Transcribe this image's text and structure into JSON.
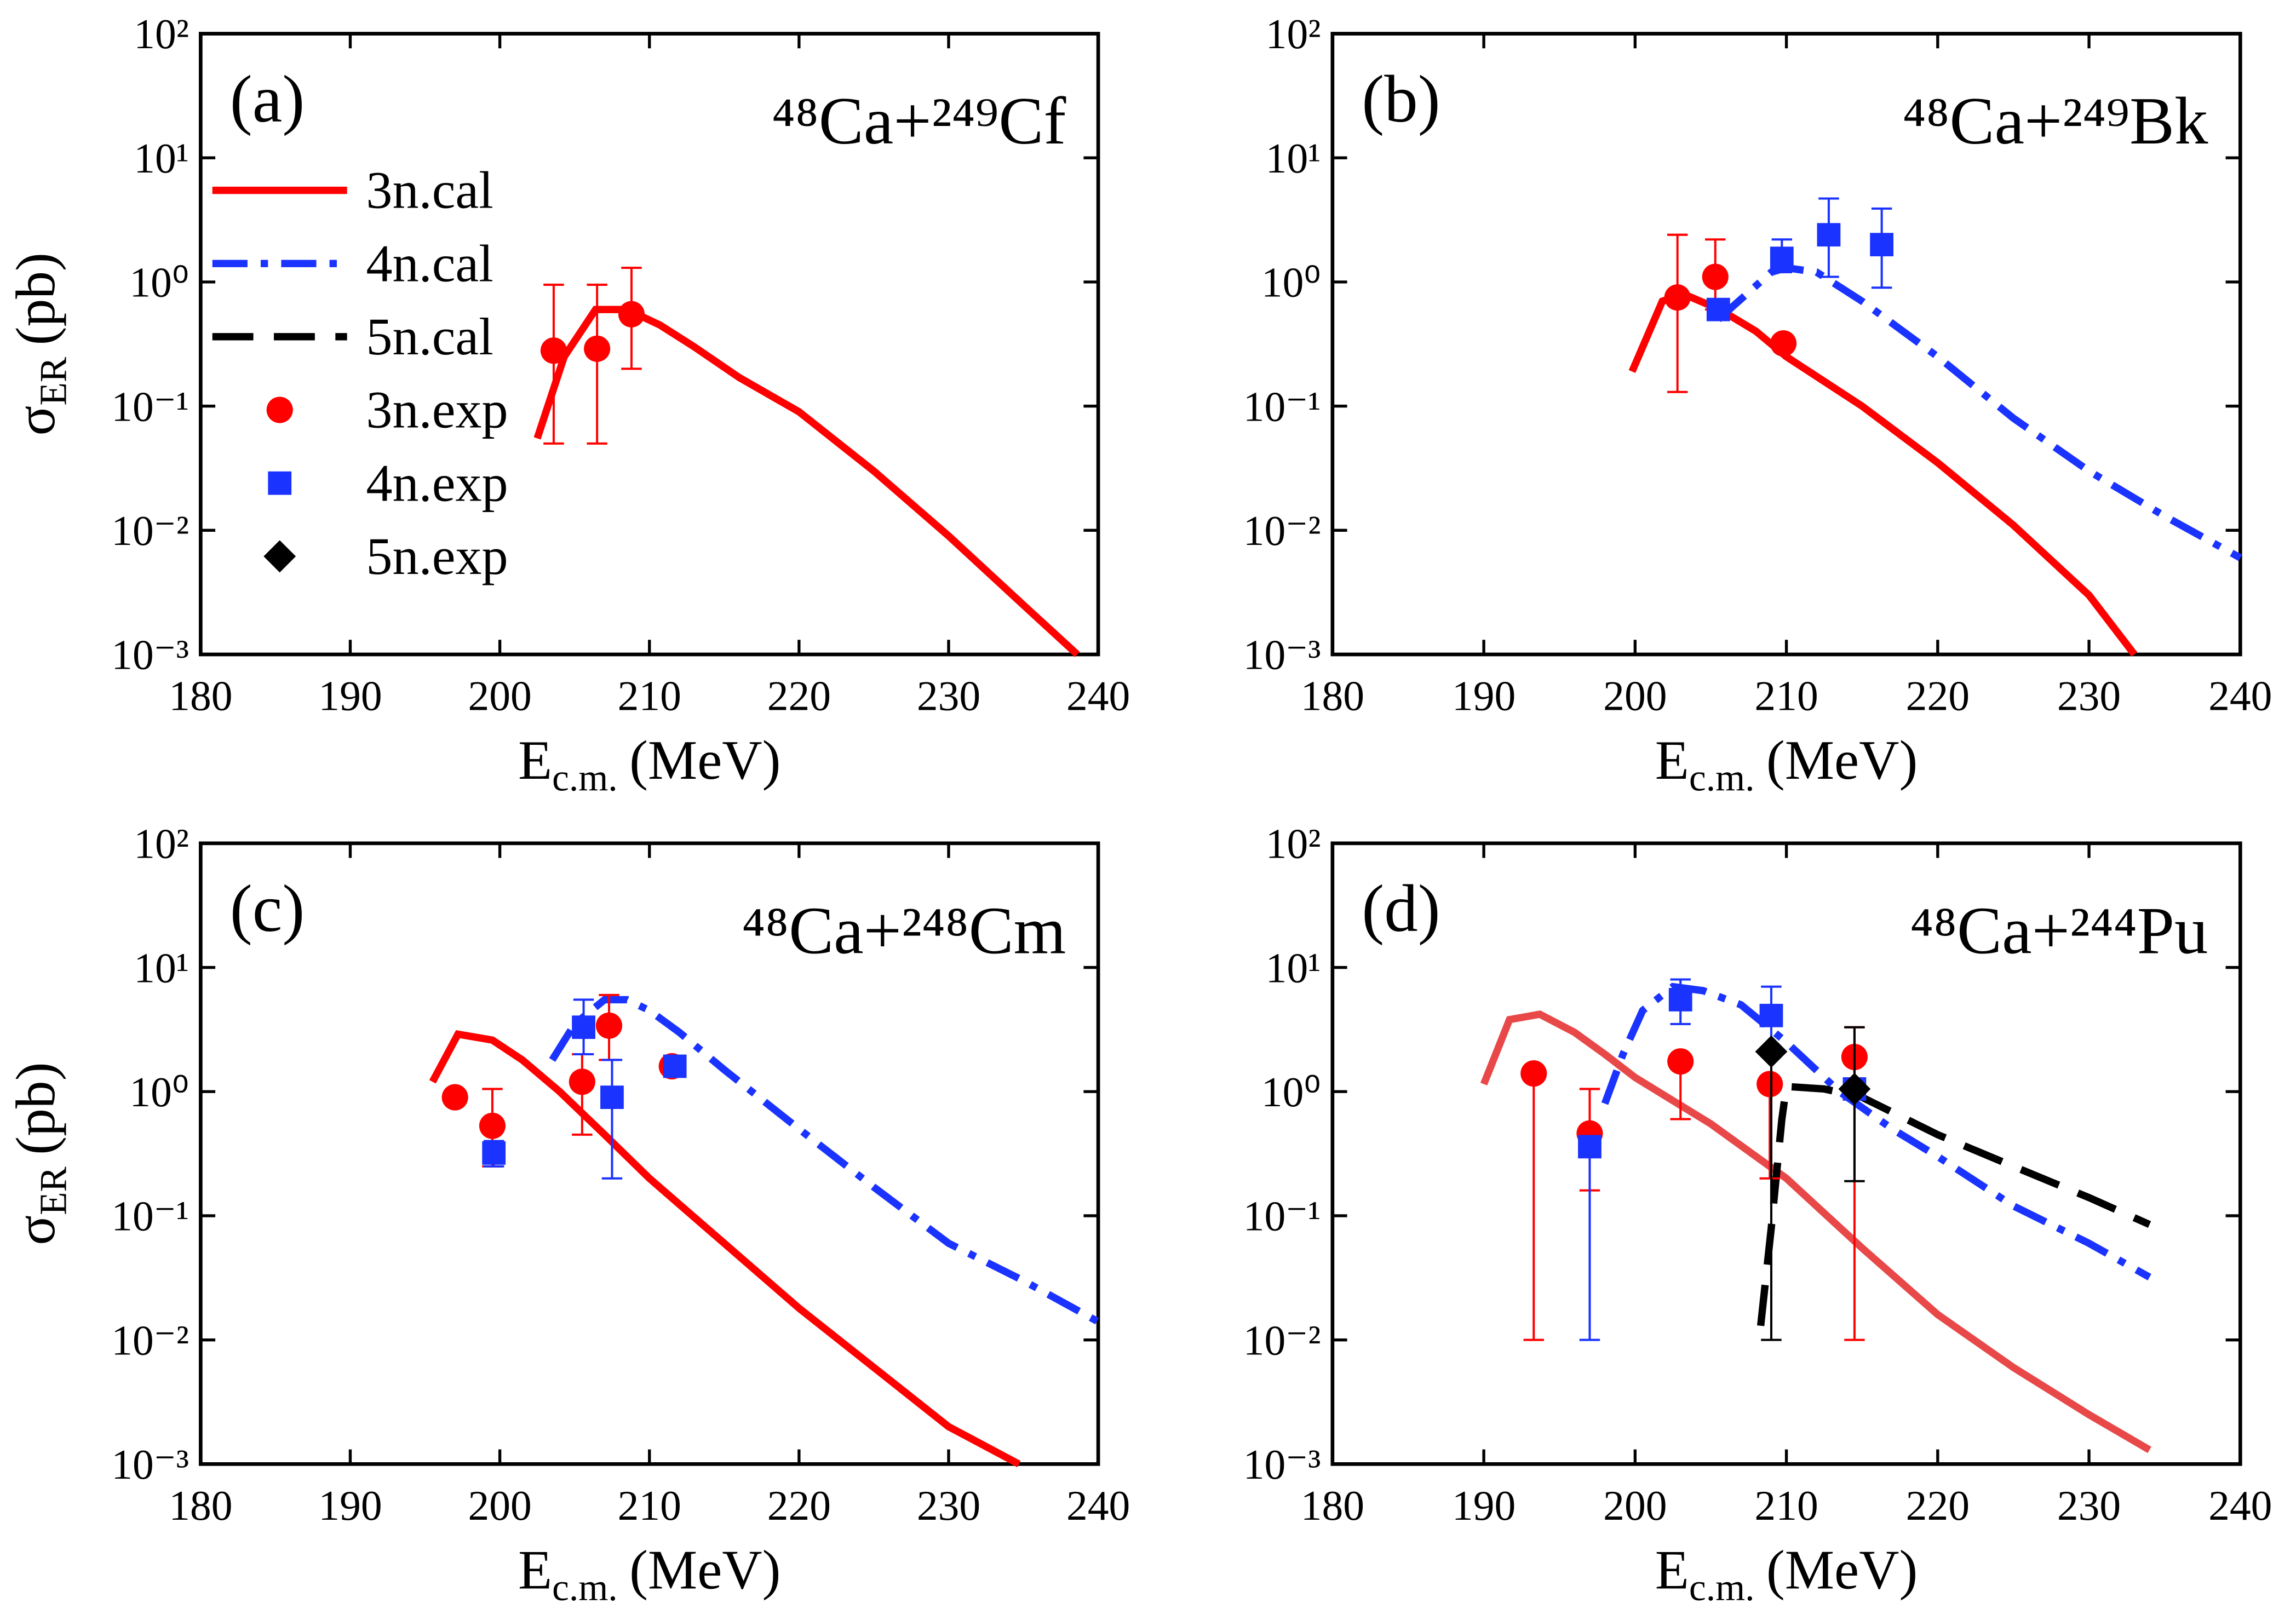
{
  "chart_data": [
    {
      "type": "line",
      "label": "(a)",
      "title": "⁴⁸Ca+²⁴⁹Cf",
      "x_label": {
        "main": "E",
        "sub": "c.m.",
        "unit": "(MeV)"
      },
      "y_label": {
        "main": "σ",
        "sub": "ER",
        "unit": "(pb)"
      },
      "xlim": [
        180,
        240
      ],
      "xticks": [
        180,
        190,
        200,
        210,
        220,
        230,
        240
      ],
      "ylim": [
        0.001,
        100
      ],
      "ylog": true,
      "yticks": [
        {
          "value": 0.001,
          "label": "10⁻³"
        },
        {
          "value": 0.01,
          "label": "10⁻²"
        },
        {
          "value": 0.1,
          "label": "10⁻¹"
        },
        {
          "value": 1,
          "label": "10⁰"
        },
        {
          "value": 10,
          "label": "10¹"
        },
        {
          "value": 100,
          "label": "10²"
        }
      ],
      "legend": "upper left",
      "series": [
        {
          "name": "3n.cal",
          "color": "#ff0000",
          "style": "line",
          "dash": "solid",
          "x": [
            202.5,
            204.3,
            206.4,
            208.5,
            210.7,
            213,
            216,
            220,
            225,
            230,
            235,
            238.6
          ],
          "values": [
            0.055,
            0.25,
            0.6,
            0.6,
            0.45,
            0.3,
            0.17,
            0.09,
            0.03,
            0.009,
            0.0025,
            0.001
          ]
        },
        {
          "name": "4n.cal",
          "color": "#1a33ff",
          "style": "line",
          "dash": "dashdot",
          "x": [],
          "values": []
        },
        {
          "name": "5n.cal",
          "color": "#000000",
          "style": "line",
          "dash": "dash",
          "x": [],
          "values": []
        },
        {
          "name": "3n.exp",
          "color": "#ff0000",
          "style": "scatter",
          "marker": "circle",
          "x": [
            203.6,
            206.5,
            208.8
          ],
          "values": [
            0.28,
            0.29,
            0.55
          ],
          "lower": [
            0.05,
            0.05,
            0.2
          ],
          "upper": [
            0.95,
            0.95,
            1.3
          ]
        },
        {
          "name": "4n.exp",
          "color": "#1a33ff",
          "style": "scatter",
          "marker": "square",
          "x": [],
          "values": [],
          "lower": [],
          "upper": []
        },
        {
          "name": "5n.exp",
          "color": "#000000",
          "style": "scatter",
          "marker": "diamond",
          "x": [],
          "values": [],
          "lower": [],
          "upper": []
        }
      ]
    },
    {
      "type": "line",
      "label": "(b)",
      "title": "⁴⁸Ca+²⁴⁹Bk",
      "x_label": {
        "main": "E",
        "sub": "c.m.",
        "unit": "(MeV)"
      },
      "xlim": [
        180,
        240
      ],
      "xticks": [
        180,
        190,
        200,
        210,
        220,
        230,
        240
      ],
      "ylim": [
        0.001,
        100
      ],
      "ylog": true,
      "yticks": [
        {
          "value": 0.001,
          "label": "10⁻³"
        },
        {
          "value": 0.01,
          "label": "10⁻²"
        },
        {
          "value": 0.1,
          "label": "10⁻¹"
        },
        {
          "value": 1,
          "label": "10⁰"
        },
        {
          "value": 10,
          "label": "10¹"
        },
        {
          "value": 100,
          "label": "10²"
        }
      ],
      "series": [
        {
          "color": "#ff0000",
          "style": "line",
          "dash": "solid",
          "x": [
            199.8,
            201.8,
            203.2,
            205.6,
            208,
            210,
            215,
            220,
            225,
            230,
            233
          ],
          "values": [
            0.19,
            0.7,
            0.8,
            0.6,
            0.4,
            0.25,
            0.1,
            0.035,
            0.011,
            0.003,
            0.001
          ]
        },
        {
          "color": "#1a33ff",
          "style": "line",
          "dash": "dashdot",
          "x": [
            205.5,
            209,
            210,
            212,
            215,
            220,
            225,
            230,
            235,
            240
          ],
          "values": [
            0.5,
            1.2,
            1.3,
            1.2,
            0.7,
            0.25,
            0.08,
            0.03,
            0.013,
            0.006
          ]
        },
        {
          "color": "#ff0000",
          "style": "scatter",
          "marker": "circle",
          "x": [
            202.8,
            205.3,
            209.8
          ],
          "values": [
            0.75,
            1.1,
            0.32
          ],
          "lower": [
            0.13,
            0.6,
            null
          ],
          "upper": [
            2.4,
            2.2,
            null
          ]
        },
        {
          "color": "#1a33ff",
          "style": "scatter",
          "marker": "square",
          "x": [
            205.5,
            209.7,
            212.8,
            216.3
          ],
          "values": [
            0.6,
            1.55,
            2.4,
            2.0
          ],
          "lower": [
            null,
            1.2,
            1.1,
            0.9
          ],
          "upper": [
            null,
            2.2,
            4.7,
            3.9
          ]
        }
      ]
    },
    {
      "type": "line",
      "label": "(c)",
      "title": "⁴⁸Ca+²⁴⁸Cm",
      "x_label": {
        "main": "E",
        "sub": "c.m.",
        "unit": "(MeV)"
      },
      "y_label": {
        "main": "σ",
        "sub": "ER",
        "unit": "(pb)"
      },
      "xlim": [
        180,
        240
      ],
      "xticks": [
        180,
        190,
        200,
        210,
        220,
        230,
        240
      ],
      "ylim": [
        0.001,
        100
      ],
      "ylog": true,
      "yticks": [
        {
          "value": 0.001,
          "label": "10⁻³"
        },
        {
          "value": 0.01,
          "label": "10⁻²"
        },
        {
          "value": 0.1,
          "label": "10⁻¹"
        },
        {
          "value": 1,
          "label": "10⁰"
        },
        {
          "value": 10,
          "label": "10¹"
        },
        {
          "value": 100,
          "label": "10²"
        }
      ],
      "series": [
        {
          "color": "#ff0000",
          "style": "line",
          "dash": "solid",
          "x": [
            195.5,
            197.2,
            199.5,
            201.5,
            204,
            207,
            210,
            215,
            220,
            225,
            230,
            234.7
          ],
          "values": [
            1.2,
            2.9,
            2.6,
            1.8,
            1.0,
            0.45,
            0.2,
            0.06,
            0.018,
            0.006,
            0.002,
            0.001
          ]
        },
        {
          "color": "#1a33ff",
          "style": "line",
          "dash": "dashdot",
          "x": [
            203.5,
            205,
            207,
            208.5,
            210,
            212,
            215,
            220,
            225,
            230,
            235,
            240
          ],
          "values": [
            1.8,
            3.5,
            5.5,
            5.5,
            4.5,
            3,
            1.5,
            0.5,
            0.17,
            0.06,
            0.03,
            0.014
          ]
        },
        {
          "color": "#ff0000",
          "style": "scatter",
          "marker": "circle",
          "x": [
            197,
            199.5,
            205.5,
            207.3,
            211.5
          ],
          "values": [
            0.9,
            0.53,
            1.2,
            3.4,
            1.6
          ],
          "lower": [
            null,
            0.25,
            0.45,
            1.8,
            null
          ],
          "upper": [
            null,
            1.05,
            2.0,
            6,
            null
          ]
        },
        {
          "color": "#1a33ff",
          "style": "scatter",
          "marker": "square",
          "x": [
            199.6,
            205.6,
            207.5,
            211.7
          ],
          "values": [
            0.32,
            3.3,
            0.9,
            1.6
          ],
          "lower": [
            0.25,
            2,
            0.2,
            null
          ],
          "upper": [
            0.4,
            5.5,
            1.8,
            null
          ]
        }
      ]
    },
    {
      "type": "line",
      "label": "(d)",
      "title": "⁴⁸Ca+²⁴⁴Pu",
      "x_label": {
        "main": "E",
        "sub": "c.m.",
        "unit": "(MeV)"
      },
      "xlim": [
        180,
        240
      ],
      "xticks": [
        180,
        190,
        200,
        210,
        220,
        230,
        240
      ],
      "ylim": [
        0.001,
        100
      ],
      "ylog": true,
      "yticks": [
        {
          "value": 0.001,
          "label": "10⁻³"
        },
        {
          "value": 0.01,
          "label": "10⁻²"
        },
        {
          "value": 0.1,
          "label": "10⁻¹"
        },
        {
          "value": 1,
          "label": "10⁰"
        },
        {
          "value": 10,
          "label": "10¹"
        },
        {
          "value": 100,
          "label": "10²"
        }
      ],
      "series": [
        {
          "color": "#e84848",
          "style": "line",
          "dash": "solid",
          "x": [
            190,
            191.7,
            193.7,
            196,
            198,
            200,
            205,
            210,
            215,
            220,
            225,
            230,
            234
          ],
          "values": [
            1.15,
            3.8,
            4.2,
            3.0,
            2.0,
            1.3,
            0.55,
            0.2,
            0.055,
            0.016,
            0.006,
            0.0025,
            0.0013
          ]
        },
        {
          "color": "#1a33ff",
          "style": "line",
          "dash": "dashdot",
          "x": [
            198,
            199.2,
            200.5,
            202.5,
            204.5,
            207,
            210,
            213.5,
            217,
            220,
            225,
            230,
            234
          ],
          "values": [
            0.8,
            2,
            4.5,
            7,
            6.5,
            5,
            2.5,
            1.0,
            0.5,
            0.3,
            0.12,
            0.06,
            0.032
          ]
        },
        {
          "color": "#000000",
          "style": "line",
          "dash": "dash",
          "x": [
            208.3,
            209,
            209.7,
            210,
            212.5,
            215,
            220,
            225,
            230,
            234
          ],
          "values": [
            0.013,
            0.08,
            0.6,
            1.1,
            1.05,
            0.9,
            0.45,
            0.25,
            0.14,
            0.085
          ]
        },
        {
          "color": "#ff0000",
          "style": "scatter",
          "marker": "circle",
          "x": [
            193.3,
            197,
            203,
            208.9,
            214.5
          ],
          "values": [
            1.4,
            0.46,
            1.75,
            1.15,
            1.9
          ],
          "lower": [
            0.01,
            0.16,
            0.6,
            0.2,
            0.01
          ],
          "upper": [
            1.5,
            1.05,
            1.8,
            1.2,
            3.3
          ]
        },
        {
          "color": "#1a33ff",
          "style": "scatter",
          "marker": "square",
          "x": [
            197,
            203,
            209,
            214.5
          ],
          "values": [
            0.36,
            5.5,
            4.1,
            1.05
          ],
          "lower": [
            0.01,
            3.5,
            2.2,
            null
          ],
          "upper": [
            0.4,
            8,
            7,
            null
          ]
        },
        {
          "color": "#000000",
          "style": "scatter",
          "marker": "diamond",
          "x": [
            209,
            214.5
          ],
          "values": [
            2.1,
            1.05
          ],
          "lower": [
            0.01,
            0.19
          ],
          "upper": [
            2.2,
            3.3
          ]
        }
      ]
    }
  ]
}
